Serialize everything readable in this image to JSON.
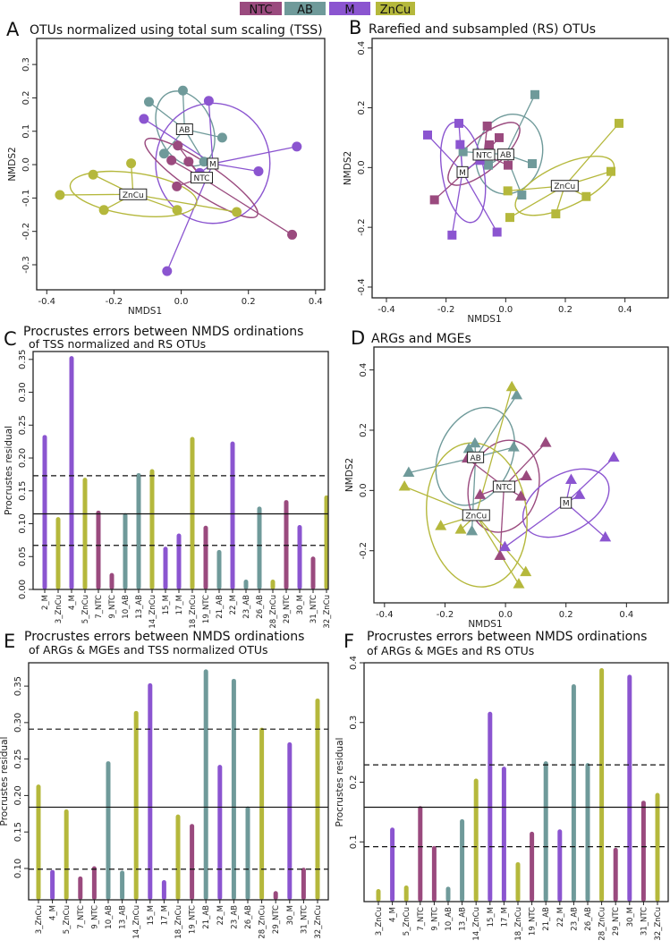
{
  "legend": {
    "items": [
      {
        "label": "NTC",
        "color": "#9a4a7e"
      },
      {
        "label": "AB",
        "color": "#6f9a9a"
      },
      {
        "label": "M",
        "color": "#8b55d0"
      },
      {
        "label": "ZnCu",
        "color": "#b5b83c"
      }
    ]
  },
  "chart_data": [
    {
      "type": "scatter",
      "panel": "A",
      "title": "OTUs normalized using total sum scaling (TSS)",
      "xlabel": "NMDS1",
      "ylabel": "NMDS2",
      "marker": "circle",
      "xlim": [
        -0.43,
        0.427
      ],
      "ylim": [
        -0.375,
        0.378
      ],
      "xticks": [
        -0.4,
        -0.2,
        0,
        0.2,
        0.4
      ],
      "xtick_labels": [
        "-0.4",
        "-0.2",
        "0.0",
        "0.2",
        "0.4"
      ],
      "yticks": [
        -0.3,
        -0.2,
        -0.1,
        0,
        0.1,
        0.2,
        0.3
      ],
      "ytick_labels": [
        "-0.3",
        "-0.2",
        "-0.1",
        "0.0",
        "0.1",
        "0.2",
        "0.3"
      ],
      "groups": [
        {
          "name": "AB",
          "centroid": [
            0.01,
            0.106
          ],
          "ellipse": {
            "cx": 0.012,
            "cy": 0.108,
            "rx": 0.08,
            "ry": 0.118,
            "angle": 25
          },
          "points": [
            [
              0.005,
              0.222
            ],
            [
              -0.096,
              0.188
            ],
            [
              0.122,
              0.081
            ],
            [
              -0.051,
              0.033
            ],
            [
              0.068,
              0.009
            ]
          ]
        },
        {
          "name": "M",
          "centroid": [
            0.094,
            0.003
          ],
          "ellipse": {
            "cx": 0.094,
            "cy": 0.004,
            "rx": 0.17,
            "ry": 0.18,
            "angle": 0
          },
          "points": [
            [
              0.082,
              0.191
            ],
            [
              -0.111,
              0.137
            ],
            [
              0.344,
              0.054
            ],
            [
              0.23,
              -0.02
            ],
            [
              0.055,
              -0.025
            ],
            [
              -0.042,
              -0.319
            ]
          ]
        },
        {
          "name": "NTC",
          "centroid": [
            0.061,
            -0.039
          ],
          "ellipse": {
            "cx": 0.06,
            "cy": -0.04,
            "rx": 0.2,
            "ry": 0.045,
            "angle": -34
          },
          "points": [
            [
              -0.01,
              0.057
            ],
            [
              -0.029,
              0.013
            ],
            [
              0.022,
              0.009
            ],
            [
              -0.013,
              -0.065
            ],
            [
              0.33,
              -0.21
            ]
          ]
        },
        {
          "name": "ZnCu",
          "centroid": [
            -0.143,
            -0.089
          ],
          "ellipse": {
            "cx": -0.142,
            "cy": -0.088,
            "rx": 0.19,
            "ry": 0.063,
            "angle": -8
          },
          "points": [
            [
              -0.149,
              0.004
            ],
            [
              -0.262,
              -0.03
            ],
            [
              -0.361,
              -0.091
            ],
            [
              -0.23,
              -0.136
            ],
            [
              -0.012,
              -0.136
            ],
            [
              0.165,
              -0.142
            ]
          ]
        }
      ]
    },
    {
      "type": "scatter",
      "panel": "B",
      "title": "Rarefied and subsampled (RS) OTUs",
      "xlabel": "NMDS1",
      "ylabel": "NMDS2",
      "marker": "square",
      "xlim": [
        -0.448,
        0.545
      ],
      "ylim": [
        -0.436,
        0.432
      ],
      "xticks": [
        -0.4,
        -0.2,
        0,
        0.2,
        0.4
      ],
      "xtick_labels": [
        "-0.4",
        "-0.2",
        "0.0",
        "0.2",
        "0.4"
      ],
      "yticks": [
        -0.4,
        -0.2,
        0,
        0.2,
        0.4
      ],
      "ytick_labels": [
        "-0.4",
        "-0.2",
        "0.0",
        "0.2",
        "0.4"
      ],
      "groups": [
        {
          "name": "AB",
          "centroid": [
            0,
            0.044
          ],
          "ellipse": {
            "cx": 0.012,
            "cy": 0.045,
            "rx": 0.11,
            "ry": 0.135,
            "angle": -15
          },
          "points": [
            [
              0.098,
              0.244
            ],
            [
              -0.143,
              0.053
            ],
            [
              -0.058,
              0.008
            ],
            [
              0.089,
              0.013
            ],
            [
              0.054,
              -0.092
            ]
          ]
        },
        {
          "name": "NTC",
          "centroid": [
            -0.073,
            0.043
          ],
          "ellipse": {
            "cx": -0.073,
            "cy": 0.046,
            "rx": 0.15,
            "ry": 0.055,
            "angle": 40
          },
          "points": [
            [
              -0.062,
              0.139
            ],
            [
              -0.055,
              0.076
            ],
            [
              -0.022,
              0.1
            ],
            [
              0.008,
              0.008
            ],
            [
              -0.239,
              -0.108
            ]
          ]
        },
        {
          "name": "M",
          "centroid": [
            -0.145,
            -0.015
          ],
          "ellipse": {
            "cx": -0.143,
            "cy": -0.016,
            "rx": 0.07,
            "ry": 0.17,
            "angle": 10
          },
          "points": [
            [
              -0.262,
              0.109
            ],
            [
              -0.157,
              0.148
            ],
            [
              -0.153,
              0.077
            ],
            [
              -0.086,
              0.024
            ],
            [
              -0.18,
              -0.226
            ],
            [
              -0.029,
              -0.216
            ]
          ]
        },
        {
          "name": "ZnCu",
          "centroid": [
            0.198,
            -0.061
          ],
          "ellipse": {
            "cx": 0.198,
            "cy": -0.061,
            "rx": 0.18,
            "ry": 0.07,
            "angle": 25
          },
          "points": [
            [
              0.38,
              0.148
            ],
            [
              0.353,
              -0.013
            ],
            [
              0.27,
              -0.097
            ],
            [
              0.168,
              -0.155
            ],
            [
              0.014,
              -0.167
            ],
            [
              0.007,
              -0.078
            ]
          ]
        }
      ]
    },
    {
      "type": "bar",
      "panel": "C",
      "title": "Procrustes errors between NMDS ordinations",
      "subtitle": "of TSS normalized and RS OTUs",
      "ylabel": "Procrustes residual",
      "ylim": [
        0,
        0.362
      ],
      "yticks": [
        0,
        0.05,
        0.1,
        0.15,
        0.2,
        0.25,
        0.3,
        0.35
      ],
      "ytick_labels": [
        "0.00",
        "0.05",
        "0.10",
        "0.15",
        "0.20",
        "0.25",
        "0.30",
        "0.35"
      ],
      "categories": [
        "2_M",
        "3_ZnCu",
        "4_M",
        "5_ZnCu",
        "7_NTC",
        "9_NTC",
        "10_AB",
        "13_AB",
        "14_ZnCu",
        "15_M",
        "17_M",
        "18_ZnCu",
        "19_NTC",
        "21_AB",
        "22_M",
        "23_AB",
        "26_AB",
        "28_ZnCu",
        "29_NTC",
        "30_M",
        "31_NTC",
        "32_ZnCu"
      ],
      "values": [
        0.235,
        0.11,
        0.355,
        0.17,
        0.12,
        0.025,
        0.116,
        0.177,
        0.183,
        0.065,
        0.085,
        0.232,
        0.097,
        0.06,
        0.225,
        0.015,
        0.126,
        0.015,
        0.136,
        0.098,
        0.05,
        0.143
      ],
      "median_line": 0.115,
      "quantile_lines": [
        0.067,
        0.173
      ]
    },
    {
      "type": "scatter",
      "panel": "D",
      "title": "ARGs and MGEs",
      "xlabel": "NMDS1",
      "ylabel": "NMDS2",
      "marker": "triangle",
      "xlim": [
        -0.435,
        0.538
      ],
      "ylim": [
        -0.373,
        0.476
      ],
      "xticks": [
        -0.4,
        -0.2,
        0,
        0.2,
        0.4
      ],
      "xtick_labels": [
        "-0.4",
        "-0.2",
        "0.0",
        "0.2",
        "0.4"
      ],
      "yticks": [
        -0.2,
        0,
        0.2,
        0.4
      ],
      "ytick_labels": [
        "-0.2",
        "0.0",
        "0.2",
        "0.4"
      ],
      "groups": [
        {
          "name": "AB",
          "centroid": [
            -0.099,
            0.11
          ],
          "ellipse": {
            "cx": -0.1,
            "cy": 0.113,
            "rx": 0.12,
            "ry": 0.17,
            "angle": -25
          },
          "points": [
            [
              0.037,
              0.316
            ],
            [
              -0.101,
              0.156
            ],
            [
              -0.121,
              0.138
            ],
            [
              0.027,
              0.143
            ],
            [
              -0.32,
              0.059
            ],
            [
              -0.111,
              -0.135
            ]
          ]
        },
        {
          "name": "NTC",
          "centroid": [
            -0.005,
            0.013
          ],
          "ellipse": {
            "cx": -0.006,
            "cy": 0.014,
            "rx": 0.115,
            "ry": 0.155,
            "angle": -15
          },
          "points": [
            [
              0.133,
              0.158
            ],
            [
              -0.126,
              0.106
            ],
            [
              0.069,
              0.047
            ],
            [
              -0.084,
              -0.015
            ],
            [
              0.051,
              -0.02
            ],
            [
              -0.018,
              -0.217
            ]
          ]
        },
        {
          "name": "M",
          "centroid": [
            0.2,
            -0.041
          ],
          "ellipse": {
            "cx": 0.2,
            "cy": -0.042,
            "rx": 0.155,
            "ry": 0.095,
            "angle": 30
          },
          "points": [
            [
              0.358,
              0.109
            ],
            [
              0.217,
              0.035
            ],
            [
              0.245,
              -0.015
            ],
            [
              0.33,
              -0.156
            ],
            [
              -0.002,
              -0.188
            ]
          ]
        },
        {
          "name": "ZnCu",
          "centroid": [
            -0.097,
            -0.082
          ],
          "ellipse": {
            "cx": -0.095,
            "cy": -0.081,
            "rx": 0.165,
            "ry": 0.24,
            "angle": 7
          },
          "points": [
            [
              0.021,
              0.343
            ],
            [
              -0.334,
              0.013
            ],
            [
              -0.214,
              -0.118
            ],
            [
              -0.148,
              -0.13
            ],
            [
              0.067,
              -0.271
            ],
            [
              0.044,
              -0.311
            ]
          ]
        }
      ]
    },
    {
      "type": "bar",
      "panel": "E",
      "title": "Procrustes errors between NMDS ordinations",
      "subtitle": "of ARGs & MGEs  and TSS normalized OTUs",
      "ylabel": "Procrustes residual",
      "ylim": [
        0.057,
        0.382
      ],
      "yticks": [
        0.1,
        0.15,
        0.2,
        0.25,
        0.3,
        0.35
      ],
      "ytick_labels": [
        "0.10",
        "0.15",
        "0.20",
        "0.25",
        "0.30",
        "0.35"
      ],
      "categories": [
        "3_ZnCu",
        "4_M",
        "5_ZnCu",
        "7_NTC",
        "9_NTC",
        "10_AB",
        "13_AB",
        "14_ZnCu",
        "15_M",
        "17_M",
        "18_ZnCu",
        "19_NTC",
        "21_AB",
        "22_M",
        "23_AB",
        "26_AB",
        "28_ZnCu",
        "29_NTC",
        "30_M",
        "31_NTC",
        "32_ZnCu"
      ],
      "values": [
        0.215,
        0.098,
        0.181,
        0.089,
        0.103,
        0.247,
        0.097,
        0.316,
        0.354,
        0.084,
        0.174,
        0.161,
        0.373,
        0.242,
        0.36,
        0.185,
        0.293,
        0.069,
        0.273,
        0.101,
        0.333
      ],
      "median_line": 0.184,
      "quantile_lines": [
        0.099,
        0.291
      ]
    },
    {
      "type": "bar",
      "panel": "F",
      "title": "Procrustes errors between NMDS ordinations",
      "subtitle": "of ARGs & MGEs and RS OTUs",
      "ylabel": "Procrustes residual",
      "ylim": [
        0,
        0.4
      ],
      "yticks": [
        0.1,
        0.2,
        0.3,
        0.4
      ],
      "ytick_labels": [
        "0.1",
        "0.2",
        "0.3",
        "0.4"
      ],
      "categories": [
        "3_ZnCu",
        "4_M",
        "5_ZnCu",
        "7_NTC",
        "9_NTC",
        "10_AB",
        "13_AB",
        "14_ZnCu",
        "15_M",
        "17_M",
        "18_ZnCu",
        "19_NTC",
        "21_AB",
        "22_M",
        "23_AB",
        "26_AB",
        "28_ZnCu",
        "29_NTC",
        "30_M",
        "31_NTC",
        "32_ZnCu"
      ],
      "values": [
        0.021,
        0.124,
        0.027,
        0.16,
        0.093,
        0.025,
        0.138,
        0.206,
        0.318,
        0.226,
        0.066,
        0.117,
        0.235,
        0.121,
        0.364,
        0.232,
        0.391,
        0.09,
        0.38,
        0.169,
        0.182
      ],
      "median_line": 0.158,
      "quantile_lines": [
        0.092,
        0.229
      ]
    }
  ]
}
